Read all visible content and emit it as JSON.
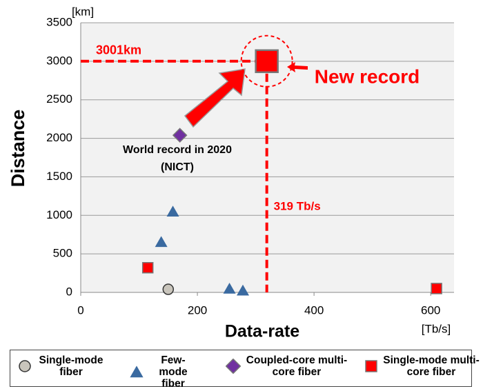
{
  "chart_data": {
    "type": "scatter",
    "y_title": "Distance",
    "x_title": "Data-rate",
    "y_unit": "[km]",
    "x_unit": "[Tb/s]",
    "xlim": [
      0,
      640
    ],
    "ylim": [
      0,
      3500
    ],
    "xticks": [
      0,
      200,
      400,
      600
    ],
    "yticks": [
      0,
      500,
      1000,
      1500,
      2000,
      2500,
      3000,
      3500
    ],
    "grid": true,
    "series": [
      {
        "name": "Single-mode fiber",
        "marker": "circle",
        "color": "#c9c5bc",
        "x": [
          150
        ],
        "values": [
          40
        ]
      },
      {
        "name": "Few-mode fiber",
        "marker": "triangle",
        "color": "#3a6aa0",
        "x": [
          138,
          158,
          255,
          278
        ],
        "values": [
          650,
          1045,
          45,
          20
        ]
      },
      {
        "name": "Coupled-core multi-core fiber",
        "marker": "diamond",
        "color": "#7030a0",
        "x": [
          170
        ],
        "values": [
          2040
        ]
      },
      {
        "name": "Single-mode multi-core fiber",
        "marker": "square",
        "color": "#ff0000",
        "x": [
          115,
          610
        ],
        "values": [
          320,
          50
        ]
      }
    ],
    "record": {
      "label": "New record",
      "x": 319,
      "y": 3001,
      "x_label": "319 Tb/s",
      "y_label": "3001km"
    },
    "previous": {
      "label": "World record in 2020",
      "sublabel": "(NICT)"
    }
  }
}
